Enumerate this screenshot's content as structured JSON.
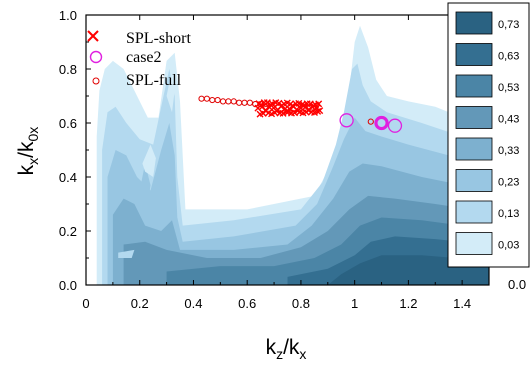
{
  "chart_data": {
    "type": "contour",
    "x_axis": {
      "label_main": "k",
      "label_sub": "z",
      "label_sep": "/",
      "label_main2": "k",
      "label_sub2": "x",
      "range": [
        0,
        1.5
      ],
      "ticks": [
        "0",
        "0.2",
        "0.4",
        "0.6",
        "0.8",
        "1",
        "1.2",
        "1.4"
      ]
    },
    "y_axis": {
      "label_main": "k",
      "label_sub": "x",
      "label_sep": "/",
      "label_main2": "k",
      "label_sub2": "0x",
      "range": [
        0,
        1
      ],
      "ticks": [
        "0.0",
        "0.2",
        "0.4",
        "0.6",
        "0.8",
        "1.0"
      ]
    },
    "right_axis_tick": "0.0",
    "contour_levels": [
      {
        "label": "0,73",
        "color": "#2a6282"
      },
      {
        "label": "0,63",
        "color": "#346f91"
      },
      {
        "label": "0,53",
        "color": "#4b85a6"
      },
      {
        "label": "0,43",
        "color": "#6398b8"
      },
      {
        "label": "0,33",
        "color": "#7db0cf"
      },
      {
        "label": "0,23",
        "color": "#98c6e2"
      },
      {
        "label": "0,13",
        "color": "#b3d9ef"
      },
      {
        "label": "0,03",
        "color": "#d3ecf8"
      }
    ],
    "legend": {
      "placement": "top-left",
      "entries": [
        {
          "label": "SPL-short",
          "marker": "x",
          "color": "#ff0000"
        },
        {
          "label": "case2",
          "marker": "circle",
          "color": "#e020e0"
        },
        {
          "label": "SPL-full",
          "marker": "small-circle",
          "color": "#e00000"
        }
      ]
    },
    "series": [
      {
        "name": "SPL-full",
        "marker": "small-circle",
        "color": "#e00000",
        "points": [
          [
            0.43,
            0.69
          ],
          [
            0.45,
            0.69
          ],
          [
            0.47,
            0.685
          ],
          [
            0.49,
            0.685
          ],
          [
            0.51,
            0.68
          ],
          [
            0.53,
            0.68
          ],
          [
            0.55,
            0.68
          ],
          [
            0.57,
            0.675
          ],
          [
            0.59,
            0.675
          ],
          [
            0.61,
            0.675
          ],
          [
            0.63,
            0.67
          ],
          [
            0.65,
            0.67
          ],
          [
            0.67,
            0.67
          ],
          [
            1.06,
            0.605
          ]
        ]
      },
      {
        "name": "SPL-short",
        "marker": "x",
        "color": "#ff0000",
        "x_range": [
          0.64,
          0.87
        ],
        "y_range": [
          0.63,
          0.68
        ],
        "count": 60
      },
      {
        "name": "case2",
        "marker": "circle",
        "color": "#e020e0",
        "points": [
          [
            0.97,
            0.61
          ],
          [
            1.1,
            0.6
          ],
          [
            1.15,
            0.59
          ]
        ],
        "highlight": [
          1.1,
          0.6
        ]
      }
    ]
  }
}
